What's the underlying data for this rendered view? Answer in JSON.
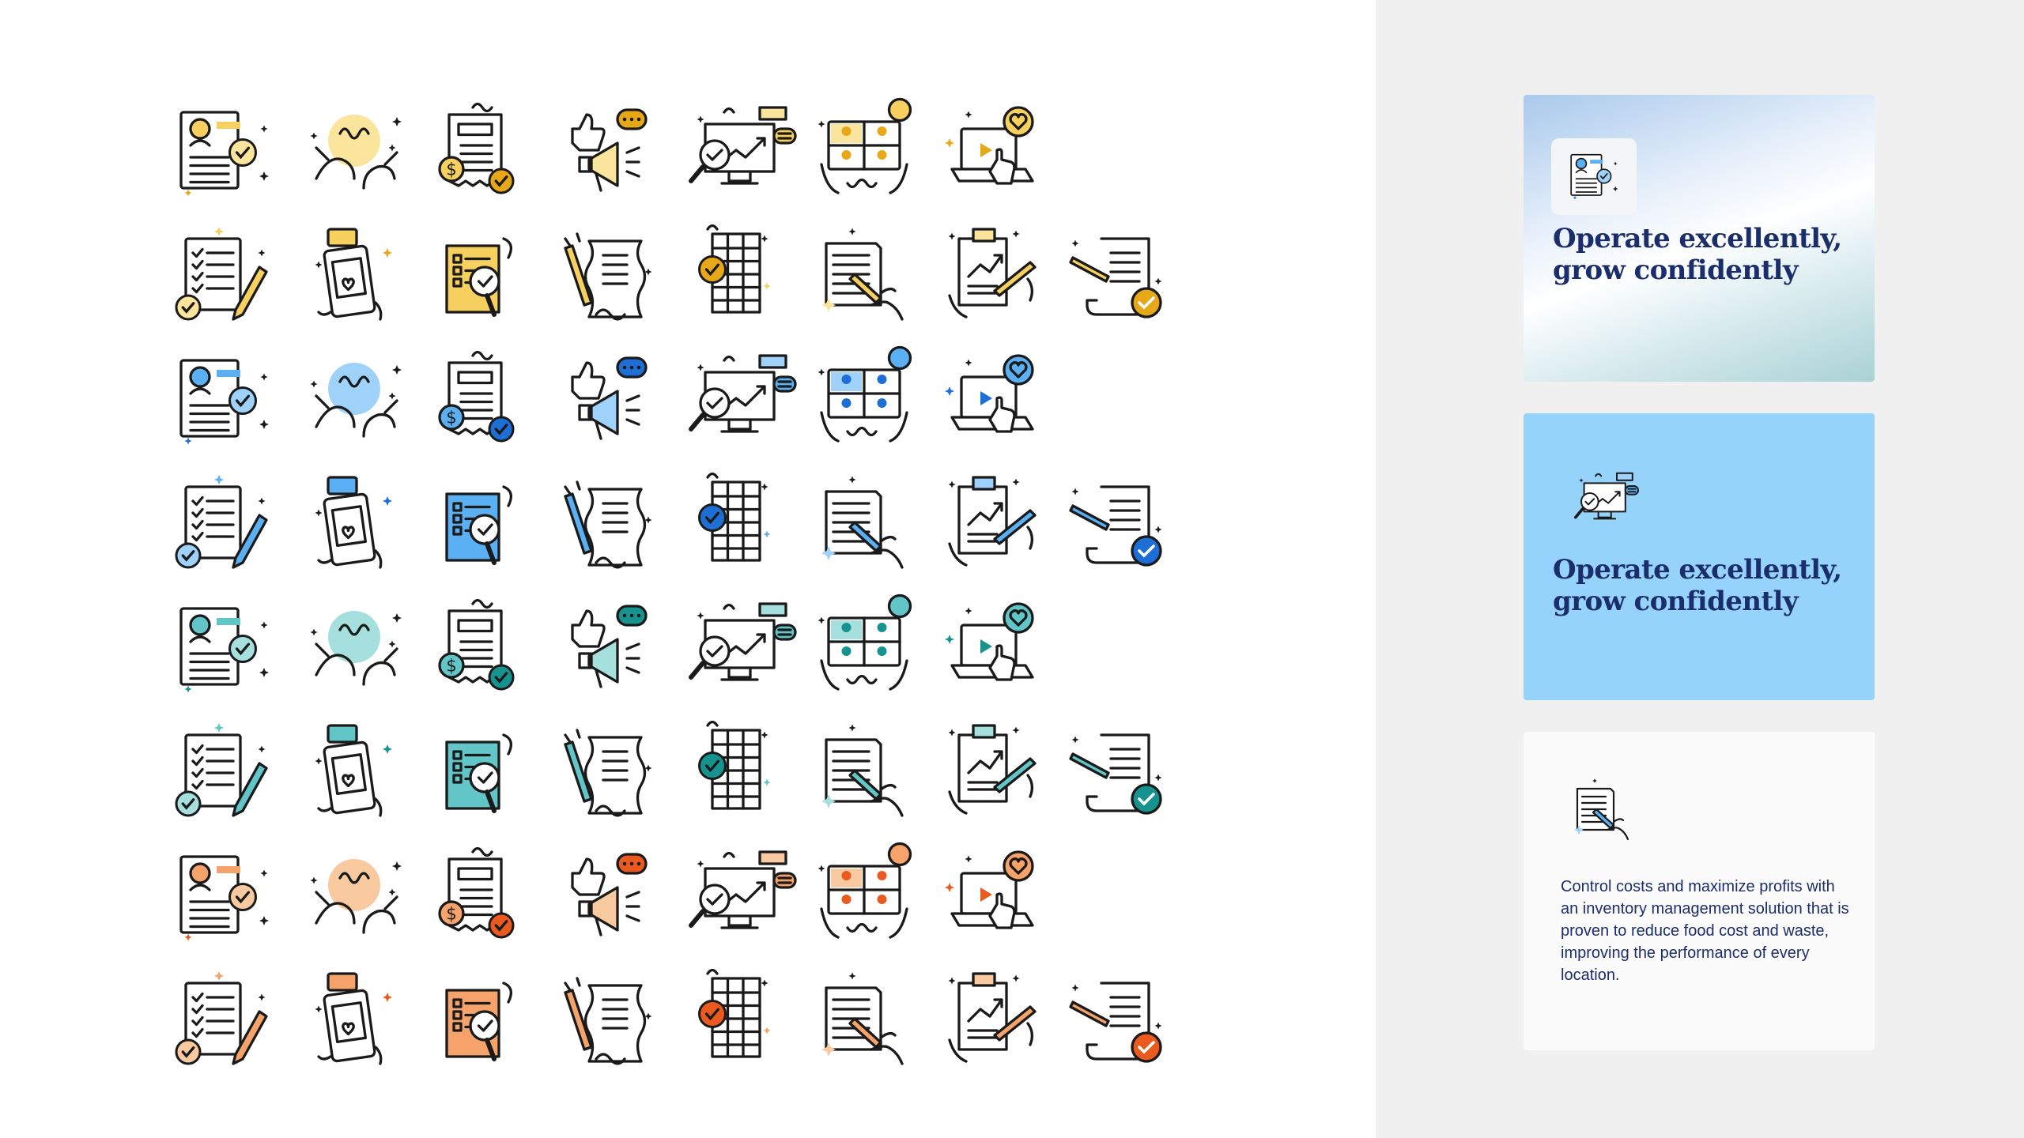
{
  "icon_sheet": {
    "columns": [
      "profile-document",
      "team-hands",
      "invoice-check",
      "megaphone-thumbs-up",
      "monitor-growth-chart",
      "video-call-tablet",
      "laptop-heart-click",
      "checklist-pencil",
      "phone-chat",
      "document-magnifier",
      "signed-scroll",
      "spreadsheet-check",
      "paper-edit-hand",
      "growth-report-pen",
      "paper-gear-check"
    ],
    "rows": [
      {
        "set": "a",
        "accent": "#f7d060",
        "strong": "#e6a817",
        "soft": "#fbe59c"
      },
      {
        "set": "b",
        "accent": "#f7d060",
        "strong": "#e6a817",
        "soft": "#fbe59c"
      },
      {
        "set": "a",
        "accent": "#5ab0f2",
        "strong": "#1d6fd6",
        "soft": "#9fd2fa"
      },
      {
        "set": "b",
        "accent": "#5ab0f2",
        "strong": "#1d6fd6",
        "soft": "#9fd2fa"
      },
      {
        "set": "a",
        "accent": "#62c6c9",
        "strong": "#17938f",
        "soft": "#a6e0de"
      },
      {
        "set": "b",
        "accent": "#62c6c9",
        "strong": "#17938f",
        "soft": "#a6e0de"
      },
      {
        "set": "a",
        "accent": "#f5a36a",
        "strong": "#ea5a1f",
        "soft": "#f9c9a0"
      },
      {
        "set": "b",
        "accent": "#f5a36a",
        "strong": "#ea5a1f",
        "soft": "#f9c9a0"
      }
    ]
  },
  "cards": [
    {
      "icon": "profile-document-icon",
      "title_line1": "Operate excellently,",
      "title_line2": "grow confidently"
    },
    {
      "icon": "monitor-growth-chart-icon",
      "title_line1": "Operate excellently,",
      "title_line2": "grow confidently"
    },
    {
      "icon": "paper-edit-hand-icon",
      "body": "Control costs and maximize profits with an inventory management solution that is proven to reduce food cost and waste, improving the performance of every location."
    }
  ],
  "colors": {
    "ink": "#1a1a1a",
    "title_navy": "#1b2d6b",
    "card2_bg": "#96d3fb",
    "panel_bg": "#f0f0f0"
  }
}
